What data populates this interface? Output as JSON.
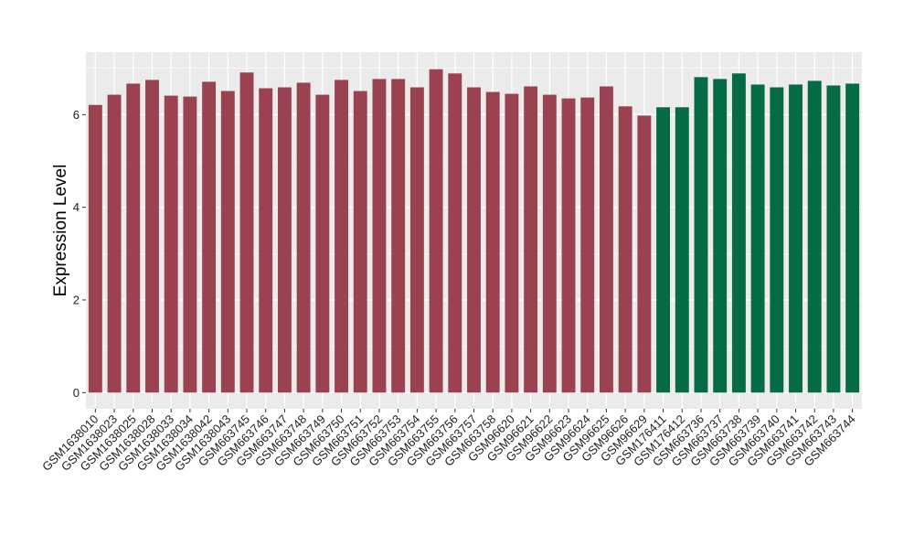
{
  "chart_data": {
    "type": "bar",
    "ylabel": "Expression Level",
    "ylim": [
      -0.35,
      7.35
    ],
    "yticks": [
      0,
      2,
      4,
      6
    ],
    "grid": true,
    "colors": {
      "group_a": "#9b4250",
      "group_b": "#046b45",
      "panel": "#ebebeb",
      "gridline": "#ffffff"
    },
    "categories": [
      "GSM1638010",
      "GSM1638023",
      "GSM1638025",
      "GSM1638028",
      "GSM1638033",
      "GSM1638034",
      "GSM1638042",
      "GSM1638043",
      "GSM663745",
      "GSM663746",
      "GSM663747",
      "GSM663748",
      "GSM663749",
      "GSM663750",
      "GSM663751",
      "GSM663752",
      "GSM663753",
      "GSM663754",
      "GSM663755",
      "GSM663756",
      "GSM663757",
      "GSM663758",
      "GSM96620",
      "GSM96621",
      "GSM96622",
      "GSM96623",
      "GSM96624",
      "GSM96625",
      "GSM96626",
      "GSM96629",
      "GSM176411",
      "GSM176412",
      "GSM663736",
      "GSM663737",
      "GSM663738",
      "GSM663739",
      "GSM663740",
      "GSM663741",
      "GSM663742",
      "GSM663743",
      "GSM663744"
    ],
    "values": [
      6.21,
      6.43,
      6.67,
      6.75,
      6.41,
      6.39,
      6.71,
      6.51,
      6.91,
      6.57,
      6.59,
      6.69,
      6.43,
      6.75,
      6.51,
      6.77,
      6.77,
      6.59,
      6.98,
      6.89,
      6.59,
      6.49,
      6.45,
      6.61,
      6.43,
      6.35,
      6.37,
      6.61,
      6.18,
      5.98,
      6.16,
      6.16,
      6.81,
      6.77,
      6.89,
      6.65,
      6.59,
      6.65,
      6.73,
      6.63,
      6.67
    ],
    "groups": [
      "a",
      "a",
      "a",
      "a",
      "a",
      "a",
      "a",
      "a",
      "a",
      "a",
      "a",
      "a",
      "a",
      "a",
      "a",
      "a",
      "a",
      "a",
      "a",
      "a",
      "a",
      "a",
      "a",
      "a",
      "a",
      "a",
      "a",
      "a",
      "a",
      "a",
      "b",
      "b",
      "b",
      "b",
      "b",
      "b",
      "b",
      "b",
      "b",
      "b",
      "b"
    ]
  }
}
